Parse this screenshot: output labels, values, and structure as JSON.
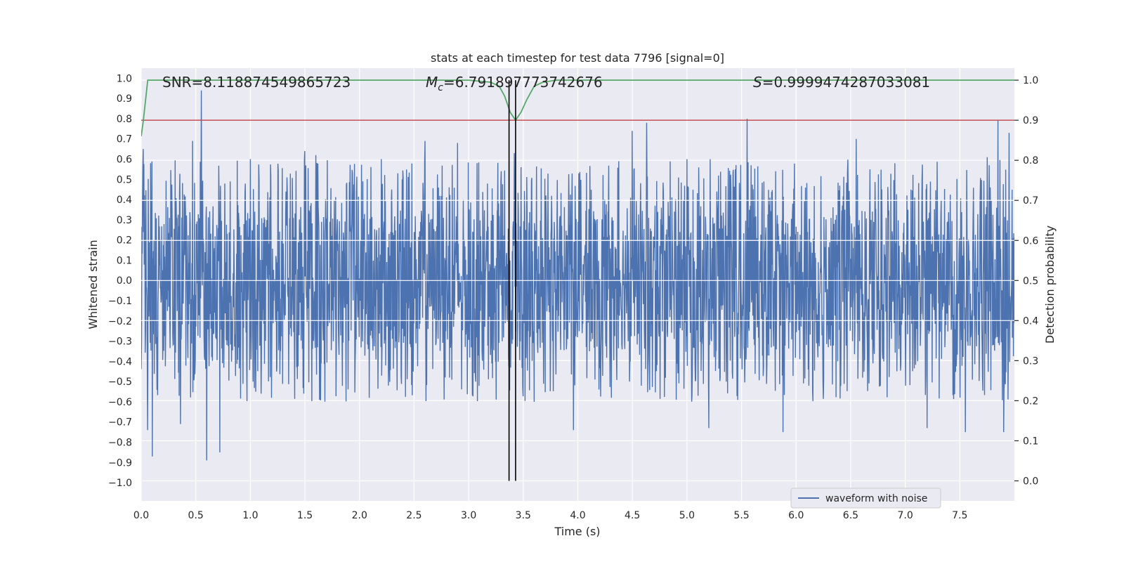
{
  "chart_data": {
    "type": "line",
    "title": "stats at each timestep for test data 7796 [signal=0]",
    "xlabel": "Time (s)",
    "ylabel_left": "Whitened strain",
    "ylabel_right": "Detection probability",
    "xlim": [
      0.0,
      8.0
    ],
    "ylim_left": [
      -1.09,
      1.05
    ],
    "ylim_right": [
      -0.05,
      1.03
    ],
    "xticks": [
      0.0,
      0.5,
      1.0,
      1.5,
      2.0,
      2.5,
      3.0,
      3.5,
      4.0,
      4.5,
      5.0,
      5.5,
      6.0,
      6.5,
      7.0,
      7.5
    ],
    "xtick_labels": [
      "0.0",
      "0.5",
      "1.0",
      "1.5",
      "2.0",
      "2.5",
      "3.0",
      "3.5",
      "4.0",
      "4.5",
      "5.0",
      "5.5",
      "6.0",
      "6.5",
      "7.0",
      "7.5"
    ],
    "yticks_left": [
      1.0,
      0.9,
      0.8,
      0.7,
      0.6,
      0.5,
      0.4,
      0.3,
      0.2,
      0.1,
      0.0,
      -0.1,
      -0.2,
      -0.3,
      -0.4,
      -0.5,
      -0.6,
      -0.7,
      -0.8,
      -0.9,
      -1.0
    ],
    "ytick_labels_left": [
      "1.0",
      "0.9",
      "0.8",
      "0.7",
      "0.6",
      "0.5",
      "0.4",
      "0.3",
      "0.2",
      "0.1",
      "0.0",
      "−0.1",
      "−0.2",
      "−0.3",
      "−0.4",
      "−0.5",
      "−0.6",
      "−0.7",
      "−0.8",
      "−0.9",
      "−1.0"
    ],
    "yticks_right": [
      1.0,
      0.9,
      0.8,
      0.7,
      0.6,
      0.5,
      0.4,
      0.3,
      0.2,
      0.1,
      0.0
    ],
    "ytick_labels_right": [
      "1.0",
      "0.9",
      "0.8",
      "0.7",
      "0.6",
      "0.5",
      "0.4",
      "0.3",
      "0.2",
      "0.1",
      "0.0"
    ],
    "annotations": {
      "snr": "SNR=8.118874549865723",
      "mc_symbol": "M",
      "mc_subscript": "c",
      "mc_value": "=6.791897773742676",
      "s_symbol": "S",
      "s_value": "=0.9999474287033081"
    },
    "threshold": 0.9,
    "vertical_lines_x": [
      3.37,
      3.43
    ],
    "waveform": {
      "name": "waveform with noise",
      "color": "#4c72b0",
      "x_range": [
        0.0,
        8.0
      ],
      "core_amplitude": 0.35,
      "typical_peak_range": [
        0.35,
        0.6
      ],
      "spikes": [
        {
          "x": 0.02,
          "y": 0.65
        },
        {
          "x": 0.06,
          "y": -0.74
        },
        {
          "x": 0.1,
          "y": -0.87
        },
        {
          "x": 0.47,
          "y": 0.69
        },
        {
          "x": 0.55,
          "y": 0.94
        },
        {
          "x": 0.6,
          "y": -0.89
        },
        {
          "x": 0.72,
          "y": -0.85
        },
        {
          "x": 0.36,
          "y": -0.71
        },
        {
          "x": 1.0,
          "y": 0.6
        },
        {
          "x": 1.5,
          "y": 0.64
        },
        {
          "x": 1.6,
          "y": 0.62
        },
        {
          "x": 2.2,
          "y": 0.6
        },
        {
          "x": 2.6,
          "y": 0.69
        },
        {
          "x": 2.9,
          "y": 0.68
        },
        {
          "x": 3.42,
          "y": 0.63
        },
        {
          "x": 3.48,
          "y": 0.56
        },
        {
          "x": 3.6,
          "y": -0.6
        },
        {
          "x": 3.96,
          "y": -0.74
        },
        {
          "x": 4.5,
          "y": 0.74
        },
        {
          "x": 4.63,
          "y": 0.78
        },
        {
          "x": 5.0,
          "y": 0.6
        },
        {
          "x": 5.2,
          "y": -0.73
        },
        {
          "x": 5.55,
          "y": 0.8
        },
        {
          "x": 5.88,
          "y": -0.75
        },
        {
          "x": 6.55,
          "y": 0.7
        },
        {
          "x": 7.2,
          "y": -0.73
        },
        {
          "x": 7.55,
          "y": -0.75
        },
        {
          "x": 7.75,
          "y": 0.61
        },
        {
          "x": 7.85,
          "y": 0.79
        },
        {
          "x": 7.9,
          "y": -0.75
        },
        {
          "x": 7.95,
          "y": 0.73
        }
      ]
    },
    "probability": {
      "color": "#55a868",
      "x": [
        0.0,
        0.02,
        0.06,
        0.1,
        0.3,
        1.0,
        2.0,
        3.0,
        3.2,
        3.28,
        3.33,
        3.38,
        3.43,
        3.48,
        3.53,
        3.6,
        3.68,
        3.8,
        4.0,
        5.0,
        6.0,
        7.0,
        8.0
      ],
      "y": [
        0.86,
        0.9,
        1.0,
        1.0,
        1.0,
        1.0,
        1.0,
        1.0,
        0.995,
        0.985,
        0.96,
        0.92,
        0.9,
        0.92,
        0.95,
        0.985,
        0.995,
        1.0,
        1.0,
        1.0,
        1.0,
        1.0,
        1.0
      ]
    },
    "threshold_color": "#c44e52",
    "legend": {
      "position": "lower-right",
      "entries": [
        "waveform with noise"
      ]
    },
    "grid": true,
    "background": "#eaeaf2"
  }
}
